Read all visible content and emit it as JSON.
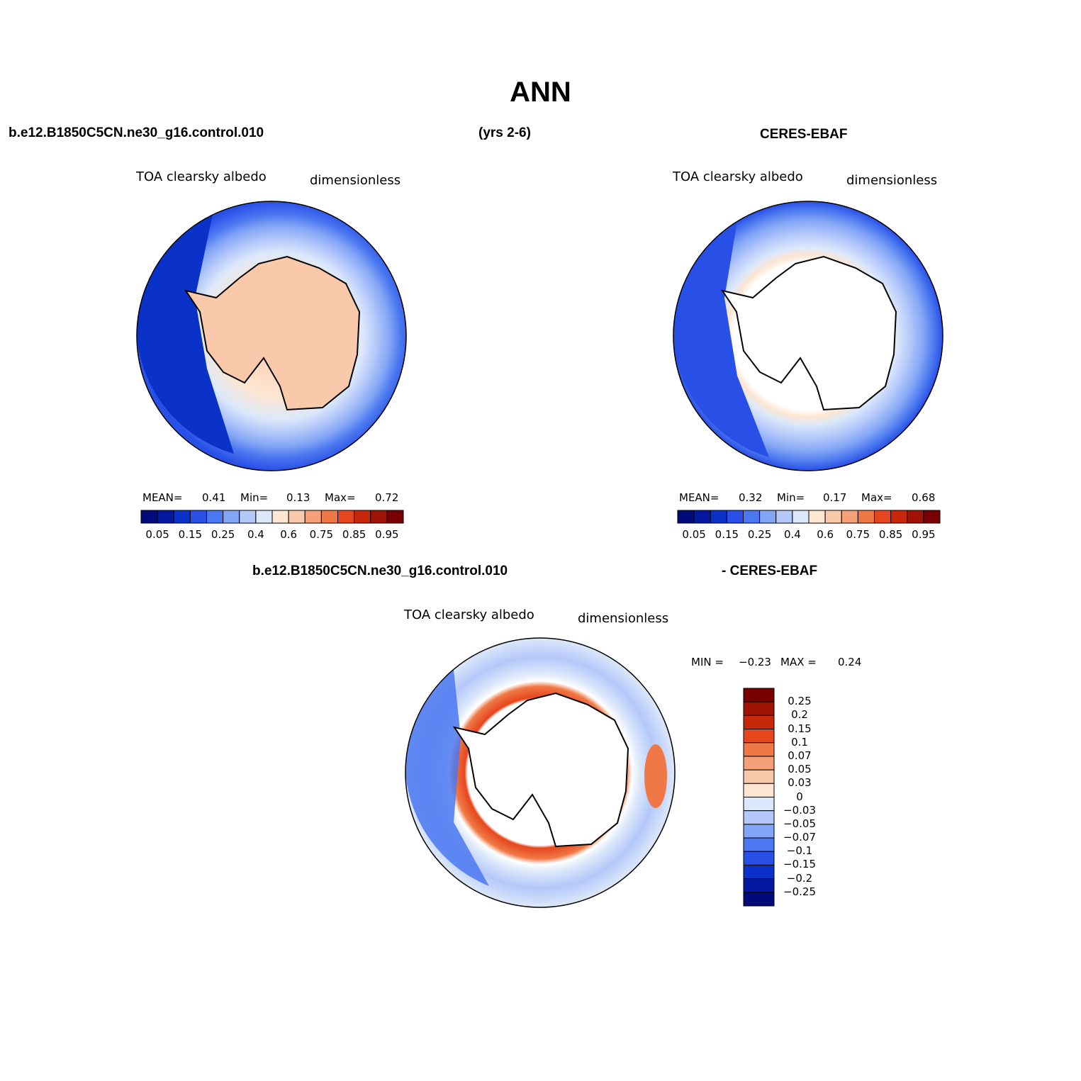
{
  "title": "ANN",
  "headers": {
    "case_name": "b.e12.B1850C5CN.ne30_g16.control.010",
    "years": "(yrs 2-6)",
    "obs_name": "CERES-EBAF",
    "diff_case": "b.e12.B1850C5CN.ne30_g16.control.010",
    "diff_obs": "- CERES-EBAF"
  },
  "panels": [
    {
      "id": "model",
      "variable": "TOA clearsky albedo",
      "units": "dimensionless",
      "stats": {
        "mean_label": "MEAN=",
        "mean": "0.41",
        "min_label": "Min=",
        "min": "0.13",
        "max_label": "Max=",
        "max": "0.72"
      }
    },
    {
      "id": "obs",
      "variable": "TOA clearsky albedo",
      "units": "dimensionless",
      "stats": {
        "mean_label": "MEAN=",
        "mean": "0.32",
        "min_label": "Min=",
        "min": "0.17",
        "max_label": "Max=",
        "max": "0.68"
      }
    },
    {
      "id": "diff",
      "variable": "TOA clearsky albedo",
      "units": "dimensionless",
      "stats": {
        "min_label": "MIN =",
        "min": "−0.23",
        "max_label": "MAX =",
        "max": "0.24"
      }
    }
  ],
  "colorbar_abs": {
    "colors": [
      "#000a78",
      "#0519a0",
      "#0a32c8",
      "#2850e6",
      "#4b78f0",
      "#82a5f5",
      "#b4c8fa",
      "#dce8fa",
      "#fde6d2",
      "#fac8aa",
      "#f5a078",
      "#f07846",
      "#e6461e",
      "#c8280a",
      "#a01405",
      "#780000"
    ],
    "tick_labels": [
      "0.05",
      "0.15",
      "0.25",
      "0.4",
      "0.6",
      "0.75",
      "0.85",
      "0.95"
    ]
  },
  "colorbar_diff": {
    "colors": [
      "#780000",
      "#a01405",
      "#c8280a",
      "#e6461e",
      "#f07846",
      "#f5a078",
      "#fac8aa",
      "#fde6d2",
      "#dce8fa",
      "#b4c8fa",
      "#82a5f5",
      "#4b78f0",
      "#2850e6",
      "#0a32c8",
      "#0519a0",
      "#000a78"
    ],
    "tick_labels": [
      "0.25",
      "0.2",
      "0.15",
      "0.1",
      "0.07",
      "0.05",
      "0.03",
      "0",
      "−0.03",
      "−0.05",
      "−0.07",
      "−0.1",
      "−0.15",
      "−0.2",
      "−0.25"
    ]
  }
}
